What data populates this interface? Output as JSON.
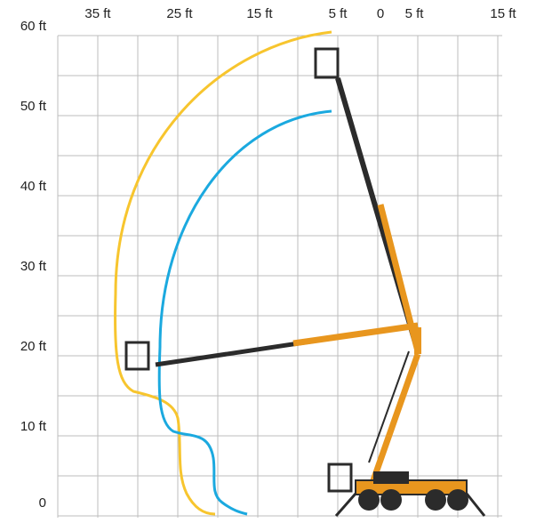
{
  "axes": {
    "top_labels": [
      "35 ft",
      "25 ft",
      "15 ft",
      "5 ft",
      "0",
      "5 ft",
      "15 ft"
    ],
    "left_labels": [
      "60 ft",
      "50 ft",
      "40 ft",
      "30 ft",
      "20 ft",
      "10 ft",
      "0"
    ]
  }
}
